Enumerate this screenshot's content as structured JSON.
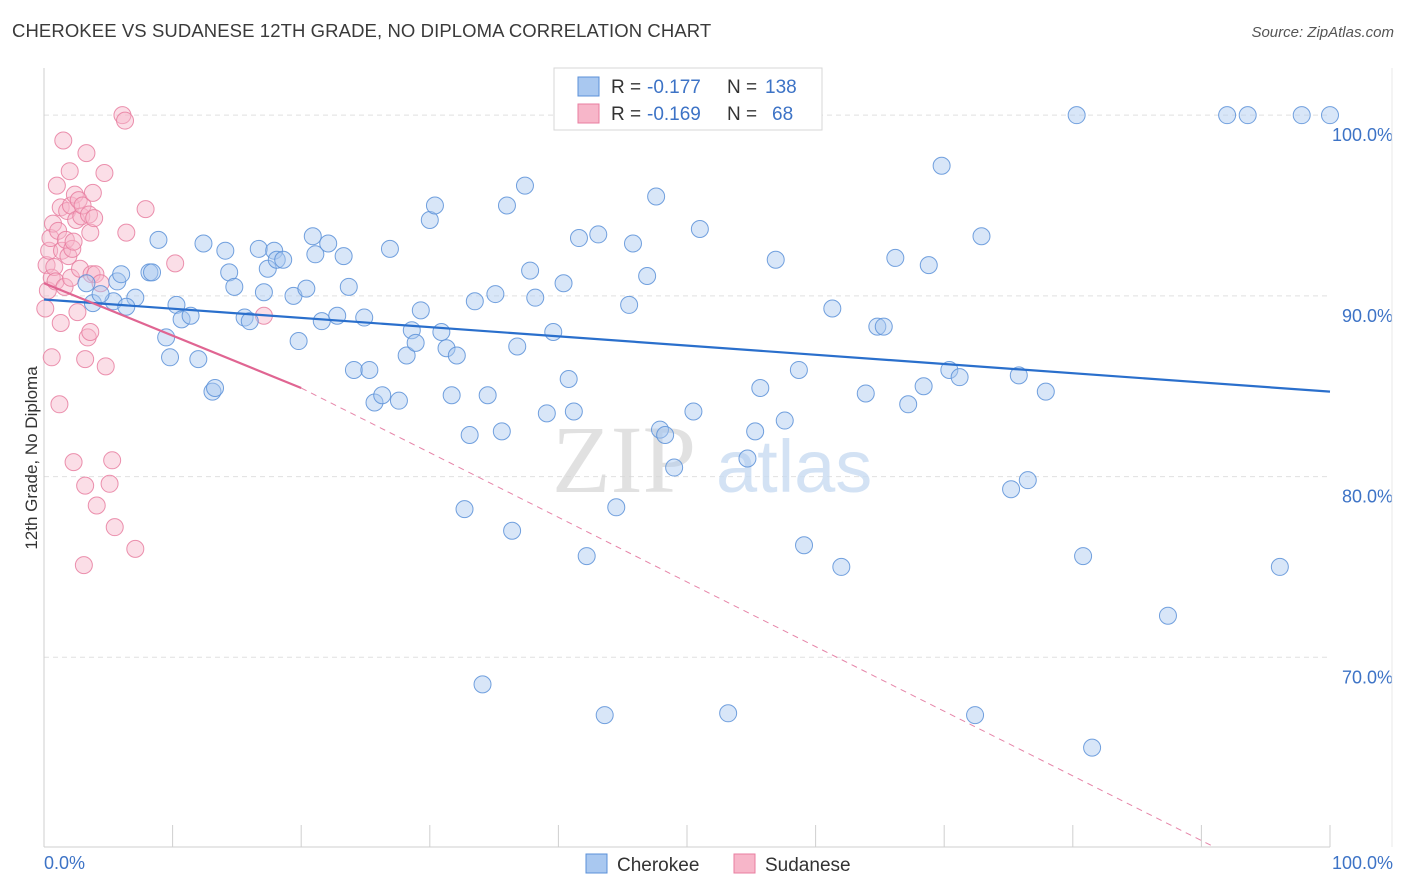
{
  "header": {
    "title": "CHEROKEE VS SUDANESE 12TH GRADE, NO DIPLOMA CORRELATION CHART",
    "source": "Source: ZipAtlas.com"
  },
  "watermark": {
    "zip": "ZIP",
    "atlas": "atlas"
  },
  "legend_box": {
    "rows": [
      {
        "r_label": "R =",
        "r_value": "-0.177",
        "n_label": "N =",
        "n_value": "138"
      },
      {
        "r_label": "R =",
        "r_value": "-0.169",
        "n_label": "N =",
        "n_value": "68"
      }
    ]
  },
  "colors": {
    "cherokee_fill": "#a9c8f0",
    "cherokee_stroke": "#5b90d8",
    "cherokee_line": "#2a6fcc",
    "sudanese_fill": "#f7b6c9",
    "sudanese_stroke": "#e87ea0",
    "sudanese_line": "#e06592",
    "value_text": "#3d73c6",
    "grid": "#e0e0e0"
  },
  "chart_data": {
    "type": "scatter",
    "title": "CHEROKEE VS SUDANESE 12TH GRADE, NO DIPLOMA CORRELATION CHART",
    "xlabel": "",
    "ylabel": "12th Grade, No Diploma",
    "xlim": [
      0,
      100
    ],
    "ylim": [
      59.5,
      102.5
    ],
    "x_tick_labels": [
      "0.0%",
      "100.0%"
    ],
    "y_ticks": [
      70,
      80,
      90,
      100
    ],
    "y_tick_labels": [
      "70.0%",
      "80.0%",
      "90.0%",
      "100.0%"
    ],
    "grid": true,
    "legend_position": "bottom-center",
    "series": [
      {
        "name": "Cherokee",
        "R": -0.177,
        "N": 138,
        "trend": {
          "x": [
            0,
            100
          ],
          "y": [
            89.8,
            84.7
          ],
          "style": "solid"
        },
        "points": [
          [
            3.3,
            90.7
          ],
          [
            3.8,
            89.6
          ],
          [
            5.7,
            90.8
          ],
          [
            6.0,
            91.2
          ],
          [
            5.4,
            89.7
          ],
          [
            4.4,
            90.1
          ],
          [
            7.1,
            89.9
          ],
          [
            8.2,
            91.3
          ],
          [
            8.4,
            91.3
          ],
          [
            6.4,
            89.4
          ],
          [
            8.9,
            93.1
          ],
          [
            9.5,
            87.7
          ],
          [
            9.8,
            86.6
          ],
          [
            10.3,
            89.5
          ],
          [
            10.7,
            88.7
          ],
          [
            11.4,
            88.9
          ],
          [
            12.0,
            86.5
          ],
          [
            12.4,
            92.9
          ],
          [
            13.1,
            84.7
          ],
          [
            13.3,
            84.9
          ],
          [
            14.1,
            92.5
          ],
          [
            14.4,
            91.3
          ],
          [
            14.8,
            90.5
          ],
          [
            15.6,
            88.8
          ],
          [
            16.0,
            88.6
          ],
          [
            16.7,
            92.6
          ],
          [
            17.1,
            90.2
          ],
          [
            17.4,
            91.5
          ],
          [
            17.9,
            92.5
          ],
          [
            18.1,
            92.0
          ],
          [
            18.6,
            92.0
          ],
          [
            19.4,
            90.0
          ],
          [
            19.8,
            87.5
          ],
          [
            20.4,
            90.4
          ],
          [
            20.9,
            93.3
          ],
          [
            21.1,
            92.3
          ],
          [
            21.6,
            88.6
          ],
          [
            22.1,
            92.9
          ],
          [
            22.8,
            88.9
          ],
          [
            23.3,
            92.2
          ],
          [
            23.7,
            90.5
          ],
          [
            24.1,
            85.9
          ],
          [
            24.9,
            88.8
          ],
          [
            25.3,
            85.9
          ],
          [
            25.7,
            84.1
          ],
          [
            26.3,
            84.5
          ],
          [
            26.9,
            92.6
          ],
          [
            27.6,
            84.2
          ],
          [
            28.2,
            86.7
          ],
          [
            28.6,
            88.1
          ],
          [
            28.9,
            87.4
          ],
          [
            29.3,
            89.2
          ],
          [
            30.0,
            94.2
          ],
          [
            30.4,
            95.0
          ],
          [
            30.9,
            88.0
          ],
          [
            31.3,
            87.1
          ],
          [
            31.7,
            84.5
          ],
          [
            32.1,
            86.7
          ],
          [
            32.7,
            78.2
          ],
          [
            33.1,
            82.3
          ],
          [
            33.5,
            89.7
          ],
          [
            34.1,
            68.5
          ],
          [
            34.5,
            84.5
          ],
          [
            35.1,
            90.1
          ],
          [
            35.6,
            82.5
          ],
          [
            36.0,
            95.0
          ],
          [
            36.4,
            77.0
          ],
          [
            36.8,
            87.2
          ],
          [
            37.4,
            96.1
          ],
          [
            37.8,
            91.4
          ],
          [
            38.2,
            89.9
          ],
          [
            39.1,
            83.5
          ],
          [
            39.6,
            88.0
          ],
          [
            40.4,
            90.7
          ],
          [
            40.8,
            85.4
          ],
          [
            41.2,
            83.6
          ],
          [
            41.6,
            93.2
          ],
          [
            42.2,
            75.6
          ],
          [
            43.1,
            93.4
          ],
          [
            43.6,
            66.8
          ],
          [
            44.5,
            78.3
          ],
          [
            45.2,
            100.0
          ],
          [
            45.5,
            89.5
          ],
          [
            45.8,
            92.9
          ],
          [
            46.9,
            91.1
          ],
          [
            47.6,
            95.5
          ],
          [
            47.9,
            82.6
          ],
          [
            48.3,
            82.3
          ],
          [
            49.0,
            80.5
          ],
          [
            49.9,
            100.0
          ],
          [
            50.5,
            83.6
          ],
          [
            51.0,
            93.7
          ],
          [
            51.4,
            100.0
          ],
          [
            53.2,
            66.9
          ],
          [
            54.7,
            81.0
          ],
          [
            55.3,
            82.5
          ],
          [
            55.7,
            84.9
          ],
          [
            56.9,
            92.0
          ],
          [
            57.6,
            83.1
          ],
          [
            58.7,
            85.9
          ],
          [
            59.1,
            76.2
          ],
          [
            61.3,
            89.3
          ],
          [
            62.0,
            75.0
          ],
          [
            63.9,
            84.6
          ],
          [
            64.8,
            88.3
          ],
          [
            65.3,
            88.3
          ],
          [
            66.2,
            92.1
          ],
          [
            67.2,
            84.0
          ],
          [
            68.4,
            85.0
          ],
          [
            68.8,
            91.7
          ],
          [
            69.8,
            97.2
          ],
          [
            70.4,
            85.9
          ],
          [
            71.2,
            85.5
          ],
          [
            72.4,
            66.8
          ],
          [
            72.9,
            93.3
          ],
          [
            75.2,
            79.3
          ],
          [
            75.8,
            85.6
          ],
          [
            76.5,
            79.8
          ],
          [
            77.9,
            84.7
          ],
          [
            80.3,
            100.0
          ],
          [
            80.8,
            75.6
          ],
          [
            81.5,
            65.0
          ],
          [
            87.4,
            72.3
          ],
          [
            92.0,
            100.0
          ],
          [
            93.6,
            100.0
          ],
          [
            96.1,
            75.0
          ],
          [
            97.8,
            100.0
          ],
          [
            100.0,
            100.0
          ]
        ]
      },
      {
        "name": "Sudanese",
        "R": -0.169,
        "N": 68,
        "trend": {
          "x": [
            0,
            20
          ],
          "y": [
            90.7,
            84.9
          ],
          "style": "solid",
          "extended": {
            "x": [
              20,
              91
            ],
            "y": [
              84.9,
              59.5
            ],
            "style": "dashed"
          }
        },
        "points": [
          [
            0.1,
            89.3
          ],
          [
            0.2,
            91.7
          ],
          [
            0.3,
            90.3
          ],
          [
            0.4,
            92.5
          ],
          [
            0.5,
            93.2
          ],
          [
            0.6,
            91.0
          ],
          [
            0.6,
            86.6
          ],
          [
            0.7,
            94.0
          ],
          [
            0.8,
            91.6
          ],
          [
            0.9,
            90.8
          ],
          [
            1.0,
            96.1
          ],
          [
            1.1,
            93.6
          ],
          [
            1.2,
            84.0
          ],
          [
            1.3,
            88.5
          ],
          [
            1.3,
            94.9
          ],
          [
            1.4,
            92.5
          ],
          [
            1.5,
            98.6
          ],
          [
            1.6,
            90.5
          ],
          [
            1.7,
            93.1
          ],
          [
            1.8,
            94.7
          ],
          [
            1.9,
            92.2
          ],
          [
            2.0,
            96.9
          ],
          [
            2.1,
            95.0
          ],
          [
            2.1,
            91.0
          ],
          [
            2.2,
            92.6
          ],
          [
            2.3,
            93.0
          ],
          [
            2.3,
            80.8
          ],
          [
            2.4,
            95.6
          ],
          [
            2.5,
            94.2
          ],
          [
            2.6,
            89.1
          ],
          [
            2.7,
            95.3
          ],
          [
            2.8,
            91.5
          ],
          [
            2.9,
            94.4
          ],
          [
            3.0,
            95.0
          ],
          [
            3.1,
            75.1
          ],
          [
            3.2,
            86.5
          ],
          [
            3.2,
            79.5
          ],
          [
            3.3,
            97.9
          ],
          [
            3.4,
            87.7
          ],
          [
            3.5,
            94.5
          ],
          [
            3.6,
            93.5
          ],
          [
            3.6,
            88.0
          ],
          [
            3.7,
            91.2
          ],
          [
            3.8,
            95.7
          ],
          [
            3.9,
            94.3
          ],
          [
            4.0,
            91.2
          ],
          [
            4.1,
            78.4
          ],
          [
            4.4,
            90.7
          ],
          [
            4.7,
            96.8
          ],
          [
            4.8,
            86.1
          ],
          [
            5.1,
            79.6
          ],
          [
            5.3,
            80.9
          ],
          [
            5.5,
            77.2
          ],
          [
            6.1,
            100.0
          ],
          [
            6.3,
            99.7
          ],
          [
            6.4,
            93.5
          ],
          [
            7.1,
            76.0
          ],
          [
            7.9,
            94.8
          ],
          [
            10.2,
            91.8
          ],
          [
            17.1,
            88.9
          ]
        ]
      }
    ]
  }
}
